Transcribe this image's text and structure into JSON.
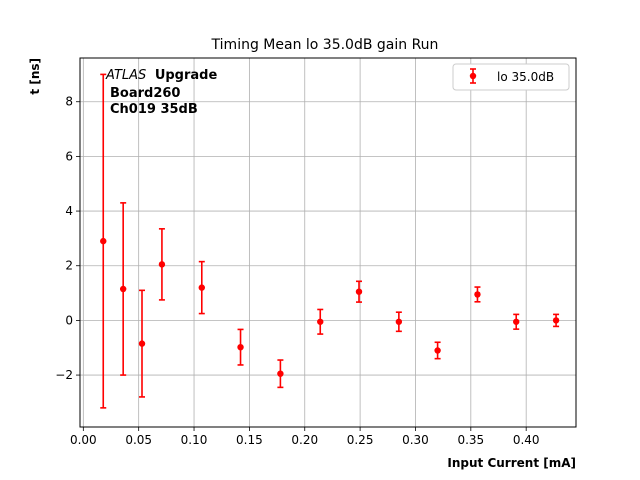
{
  "chart_data": {
    "type": "scatter",
    "title": "Timing Mean lo 35.0dB gain Run",
    "xlabel": "Input Current [mA]",
    "ylabel": "t [ns]",
    "xlim": [
      -0.003,
      0.445
    ],
    "ylim": [
      -3.9,
      9.6
    ],
    "xticks": [
      "0.00",
      "0.05",
      "0.10",
      "0.15",
      "0.20",
      "0.25",
      "0.30",
      "0.35",
      "0.40"
    ],
    "yticks": [
      "−2",
      "0",
      "2",
      "4",
      "6",
      "8"
    ],
    "grid": true,
    "legend_position": "top-right",
    "series": [
      {
        "name": "lo 35.0dB",
        "color": "#ff0000",
        "x": [
          0.018,
          0.036,
          0.053,
          0.071,
          0.107,
          0.142,
          0.178,
          0.214,
          0.249,
          0.285,
          0.32,
          0.356,
          0.391,
          0.427
        ],
        "y": [
          2.9,
          1.15,
          -0.85,
          2.05,
          1.2,
          -0.98,
          -1.95,
          -0.05,
          1.05,
          -0.05,
          -1.1,
          0.95,
          -0.05,
          0.0
        ],
        "err": [
          6.1,
          3.15,
          1.95,
          1.3,
          0.95,
          0.65,
          0.5,
          0.45,
          0.38,
          0.35,
          0.3,
          0.27,
          0.27,
          0.22
        ]
      }
    ],
    "annotation": {
      "line1_italic": "ATLAS",
      "line1_bold": "Upgrade",
      "line2": "Board260",
      "line3": "Ch019 35dB"
    }
  }
}
